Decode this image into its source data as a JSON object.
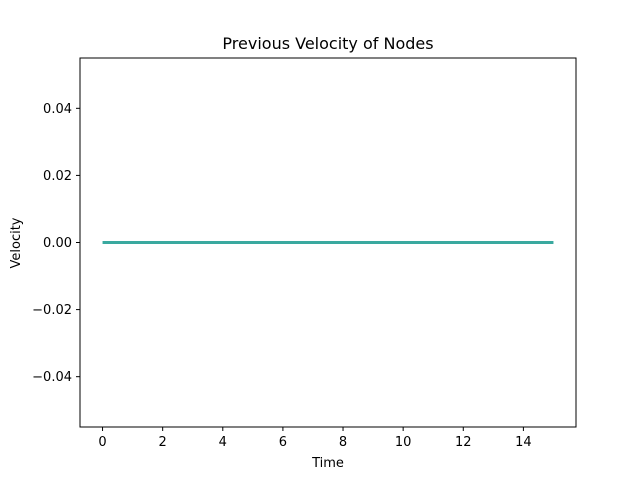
{
  "chart_data": {
    "type": "line",
    "title": "Previous Velocity of Nodes",
    "xlabel": "Time",
    "ylabel": "Velocity",
    "xlim": [
      -0.75,
      15.75
    ],
    "ylim": [
      -0.055,
      0.055
    ],
    "xticks": [
      0,
      2,
      4,
      6,
      8,
      10,
      12,
      14
    ],
    "xtick_labels": [
      "0",
      "2",
      "4",
      "6",
      "8",
      "10",
      "12",
      "14"
    ],
    "yticks": [
      -0.04,
      -0.02,
      0.0,
      0.02,
      0.04
    ],
    "ytick_labels": [
      "−0.04",
      "−0.02",
      "0.00",
      "0.02",
      "0.04"
    ],
    "grid": false,
    "series": [
      {
        "color": "#3aa99f",
        "x": [
          0,
          1,
          2,
          3,
          4,
          5,
          6,
          7,
          8,
          9,
          10,
          11,
          12,
          13,
          14,
          15
        ],
        "y": [
          0,
          0,
          0,
          0,
          0,
          0,
          0,
          0,
          0,
          0,
          0,
          0,
          0,
          0,
          0,
          0
        ]
      }
    ]
  }
}
